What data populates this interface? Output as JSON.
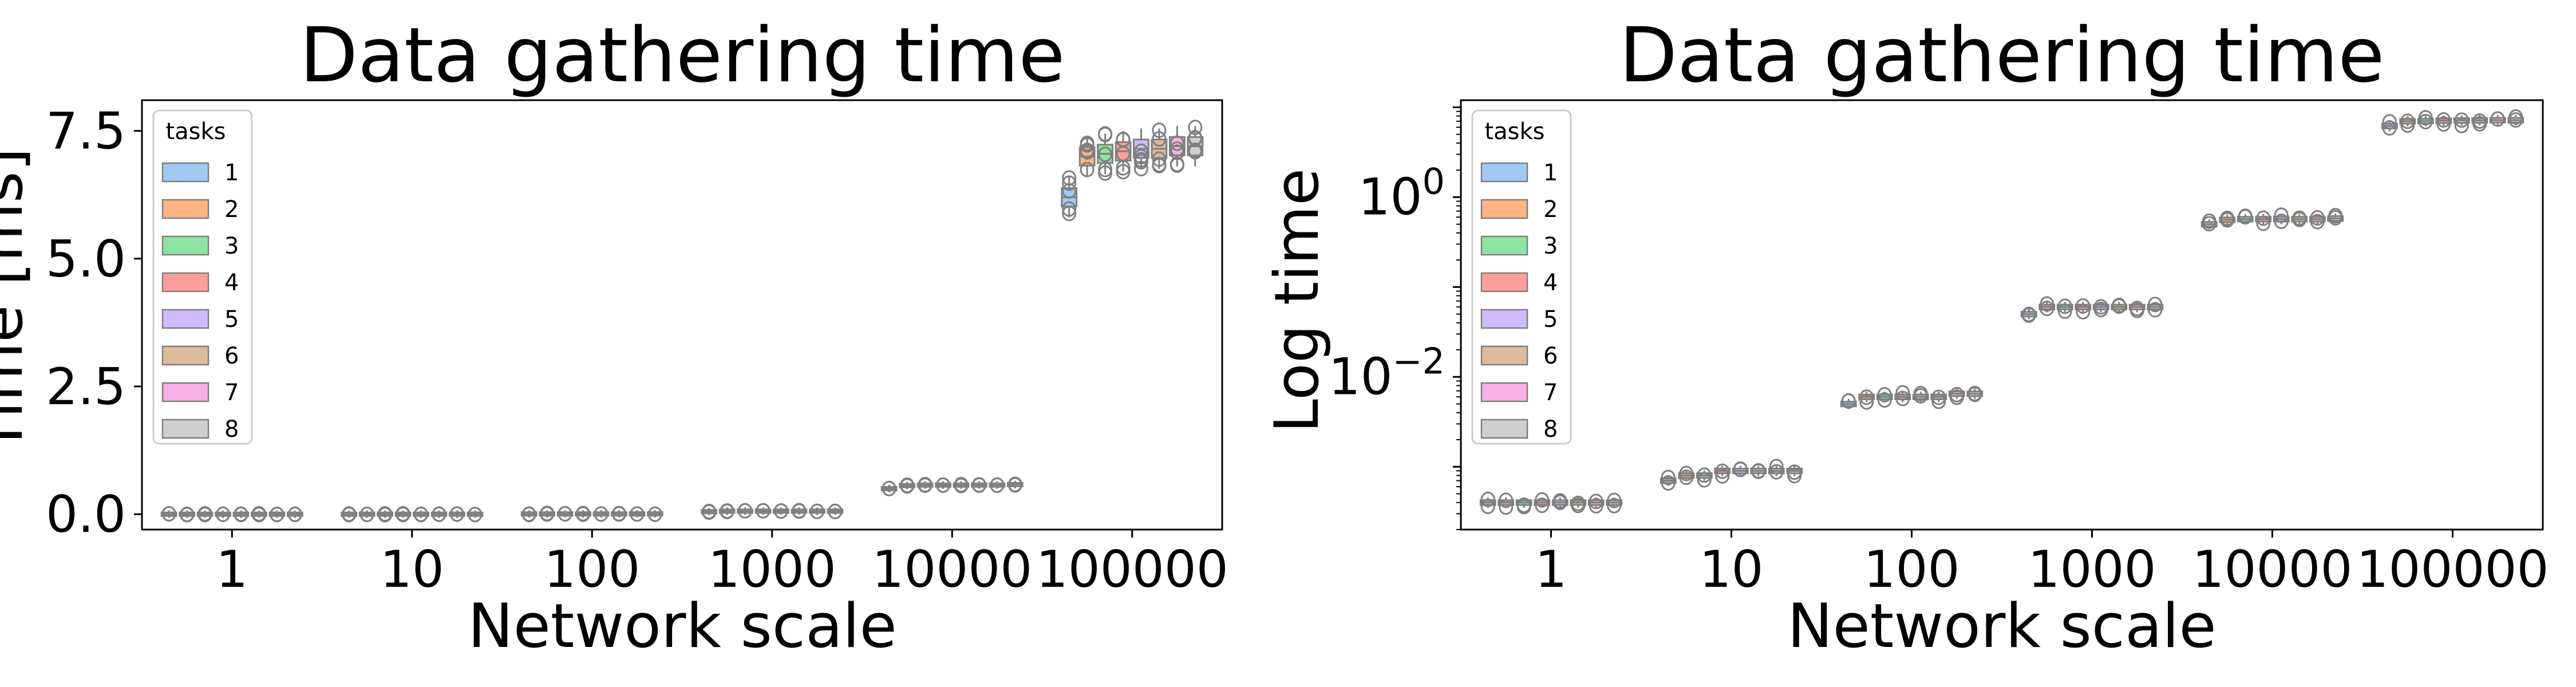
{
  "chart_data": [
    {
      "type": "box",
      "title": "Data gathering time",
      "xlabel": "Network scale",
      "ylabel": "Time [ms]",
      "yscale": "linear",
      "ylim": [
        -0.3,
        8.1
      ],
      "yticks": [
        0.0,
        2.5,
        5.0,
        7.5
      ],
      "ytick_labels": [
        "0.0",
        "2.5",
        "5.0",
        "7.5"
      ],
      "categories": [
        "1",
        "10",
        "100",
        "1000",
        "10000",
        "100000"
      ],
      "legend": {
        "title": "tasks",
        "position": "top-left",
        "entries": [
          "1",
          "2",
          "3",
          "4",
          "5",
          "6",
          "7",
          "8"
        ]
      },
      "series": [
        {
          "name": "1",
          "values": [
            0.0004,
            0.0007,
            0.005,
            0.05,
            0.5,
            6.2
          ]
        },
        {
          "name": "2",
          "values": [
            0.0004,
            0.0008,
            0.006,
            0.06,
            0.56,
            7.0
          ]
        },
        {
          "name": "3",
          "values": [
            0.0004,
            0.0008,
            0.006,
            0.06,
            0.57,
            7.05
          ]
        },
        {
          "name": "4",
          "values": [
            0.0004,
            0.0009,
            0.006,
            0.06,
            0.57,
            7.1
          ]
        },
        {
          "name": "5",
          "values": [
            0.0004,
            0.0009,
            0.006,
            0.06,
            0.57,
            7.15
          ]
        },
        {
          "name": "6",
          "values": [
            0.0004,
            0.0009,
            0.006,
            0.06,
            0.57,
            7.15
          ]
        },
        {
          "name": "7",
          "values": [
            0.0004,
            0.0009,
            0.0065,
            0.06,
            0.57,
            7.2
          ]
        },
        {
          "name": "8",
          "values": [
            0.0004,
            0.0009,
            0.0065,
            0.06,
            0.58,
            7.2
          ]
        }
      ]
    },
    {
      "type": "box",
      "title": "Data gathering time",
      "xlabel": "Network scale",
      "ylabel": "Log time",
      "yscale": "log",
      "ylim": [
        0.0002,
        12
      ],
      "yticks": [
        0.01,
        1
      ],
      "ytick_labels": [
        "10^-2",
        "10^0"
      ],
      "categories": [
        "1",
        "10",
        "100",
        "1000",
        "10000",
        "100000"
      ],
      "legend": {
        "title": "tasks",
        "position": "top-left",
        "entries": [
          "1",
          "2",
          "3",
          "4",
          "5",
          "6",
          "7",
          "8"
        ]
      },
      "series": [
        {
          "name": "1",
          "values": [
            0.0004,
            0.0007,
            0.005,
            0.05,
            0.5,
            6.2
          ]
        },
        {
          "name": "2",
          "values": [
            0.0004,
            0.0008,
            0.006,
            0.06,
            0.56,
            7.0
          ]
        },
        {
          "name": "3",
          "values": [
            0.0004,
            0.0008,
            0.006,
            0.06,
            0.57,
            7.05
          ]
        },
        {
          "name": "4",
          "values": [
            0.0004,
            0.0009,
            0.006,
            0.06,
            0.57,
            7.1
          ]
        },
        {
          "name": "5",
          "values": [
            0.0004,
            0.0009,
            0.006,
            0.06,
            0.57,
            7.15
          ]
        },
        {
          "name": "6",
          "values": [
            0.0004,
            0.0009,
            0.006,
            0.06,
            0.57,
            7.15
          ]
        },
        {
          "name": "7",
          "values": [
            0.0004,
            0.0009,
            0.0065,
            0.06,
            0.57,
            7.2
          ]
        },
        {
          "name": "8",
          "values": [
            0.0004,
            0.0009,
            0.0065,
            0.06,
            0.58,
            7.2
          ]
        }
      ]
    }
  ],
  "colors": {
    "series": [
      "#a1c9f4",
      "#ffb482",
      "#8de5a1",
      "#ff9f9b",
      "#d0bbff",
      "#debb9b",
      "#fab0e4",
      "#cfcfcf"
    ],
    "box_edge": "#7f7f7f",
    "axis": "#000000"
  }
}
